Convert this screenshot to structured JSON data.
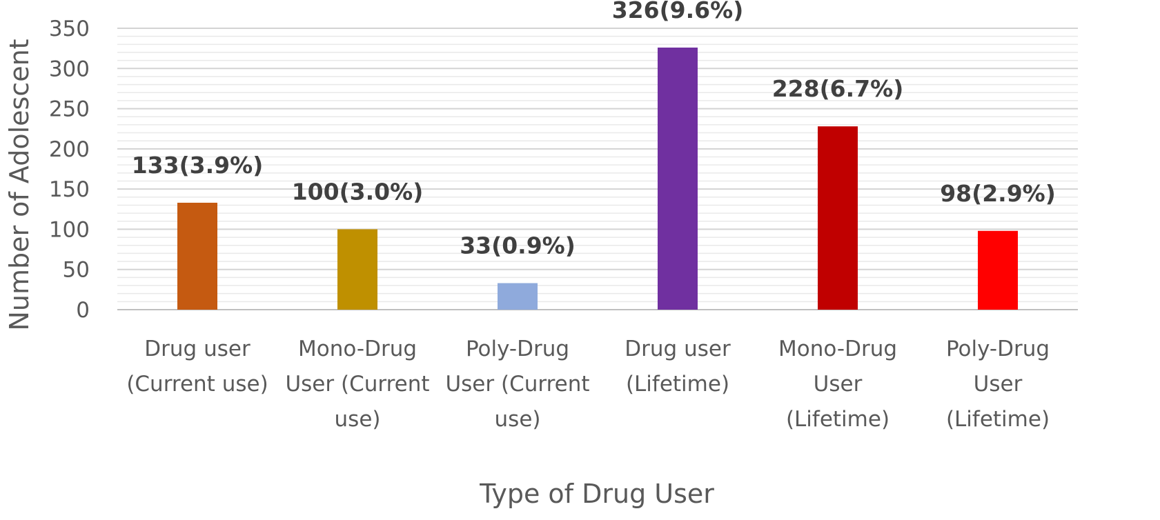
{
  "chart_data": {
    "type": "bar",
    "xlabel": "Type of Drug User",
    "ylabel": "Number of Adolescent",
    "ylim": [
      0,
      350
    ],
    "yticks": [
      0,
      50,
      100,
      150,
      200,
      250,
      300,
      350
    ],
    "grid": true,
    "categories": [
      [
        "Drug user",
        "(Current use)"
      ],
      [
        "Mono-Drug",
        "User (Current",
        "use)"
      ],
      [
        "Poly-Drug",
        "User (Current",
        "use)"
      ],
      [
        "Drug user",
        "(Lifetime)"
      ],
      [
        "Mono-Drug",
        "User",
        "(Lifetime)"
      ],
      [
        "Poly-Drug",
        "User",
        "(Lifetime)"
      ]
    ],
    "values": [
      133,
      100,
      33,
      326,
      228,
      98
    ],
    "data_labels": [
      "133(3.9%)",
      "100(3.0%)",
      "33(0.9%)",
      "326(9.6%)",
      "228(6.7%)",
      "98(2.9%)"
    ],
    "colors": [
      "#C55A11",
      "#BF9000",
      "#8FAADC",
      "#7030A0",
      "#C00000",
      "#FF0000"
    ]
  }
}
